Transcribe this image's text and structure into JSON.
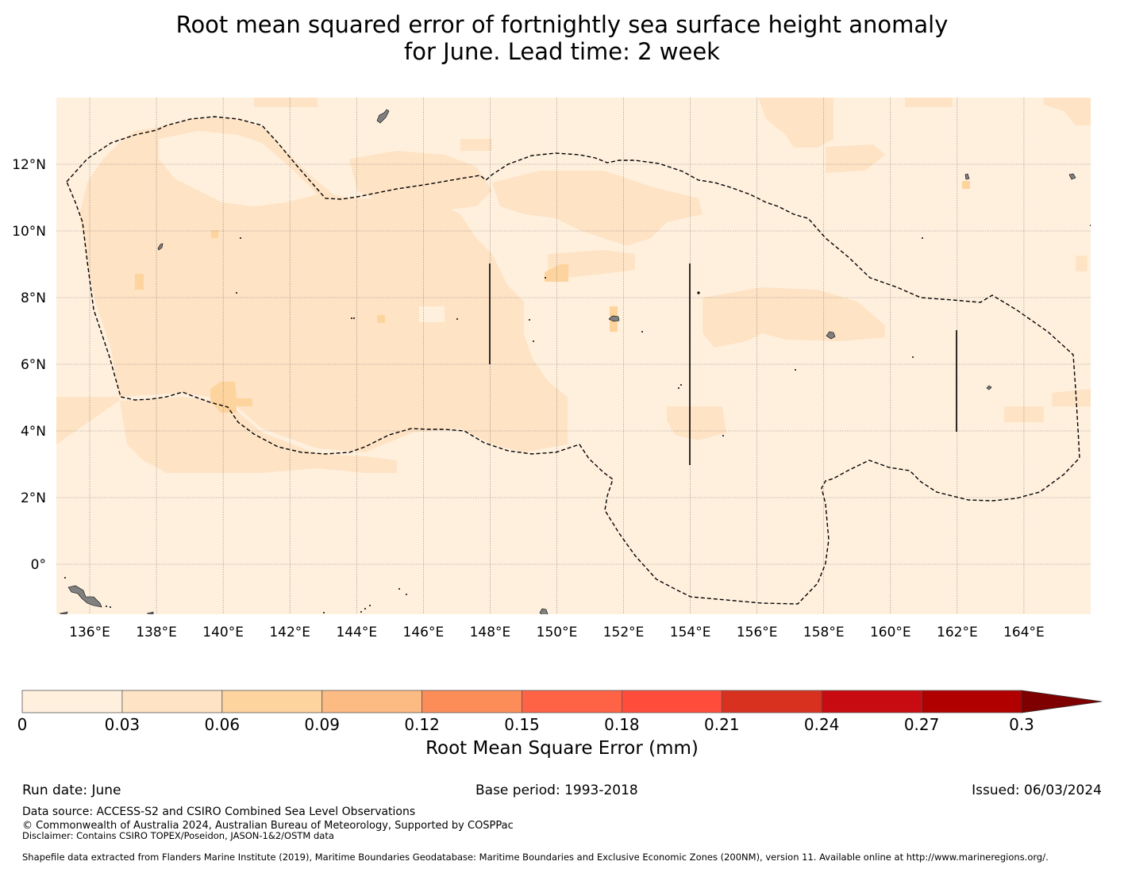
{
  "title": {
    "line1": "Root mean squared error of fortnightly sea surface height anomaly",
    "line2": "for June. Lead time: 2 week"
  },
  "map": {
    "lon_ticks": [
      "136°E",
      "138°E",
      "140°E",
      "142°E",
      "144°E",
      "146°E",
      "148°E",
      "150°E",
      "152°E",
      "154°E",
      "156°E",
      "158°E",
      "160°E",
      "162°E",
      "164°E"
    ],
    "lat_ticks": [
      "12°N",
      "10°N",
      "8°N",
      "6°N",
      "4°N",
      "2°N",
      "0°"
    ],
    "lon_range": [
      135,
      166
    ],
    "lat_range": [
      -1.5,
      14
    ],
    "land_color": "#808080",
    "eez_line": "dashed"
  },
  "colorbar": {
    "label": "Root Mean Square Error (mm)",
    "ticks": [
      "0",
      "0.03",
      "0.06",
      "0.09",
      "0.12",
      "0.15",
      "0.18",
      "0.21",
      "0.24",
      "0.27",
      "0.3"
    ],
    "colors": [
      "#fff0de",
      "#fee3c5",
      "#fdd49e",
      "#fdbb84",
      "#fc8d59",
      "#fe6346",
      "#ff4c3b",
      "#d93120",
      "#c70b10",
      "#b00000"
    ],
    "extend_color": "#7f0000"
  },
  "footer": {
    "run_date": "Run date: June",
    "base_period": "Base period: 1993-2018",
    "issued": "Issued: 06/03/2024",
    "data_source": "Data source: ACCESS-S2 and CSIRO Combined Sea Level Observations",
    "copyright": "© Commonwealth of Australia 2024, Australian Bureau of Meteorology, Supported by COSPPac",
    "disclaimer": "Disclaimer: Contains CSIRO TOPEX/Poseidon, JASON-1&2/OSTM data",
    "shapefile": "Shapefile data extracted from Flanders Marine Institute (2019), Maritime Boundaries Geodatabase: Maritime Boundaries and Exclusive Economic Zones (200NM), version 11. Available online at http://www.marineregions.org/."
  }
}
